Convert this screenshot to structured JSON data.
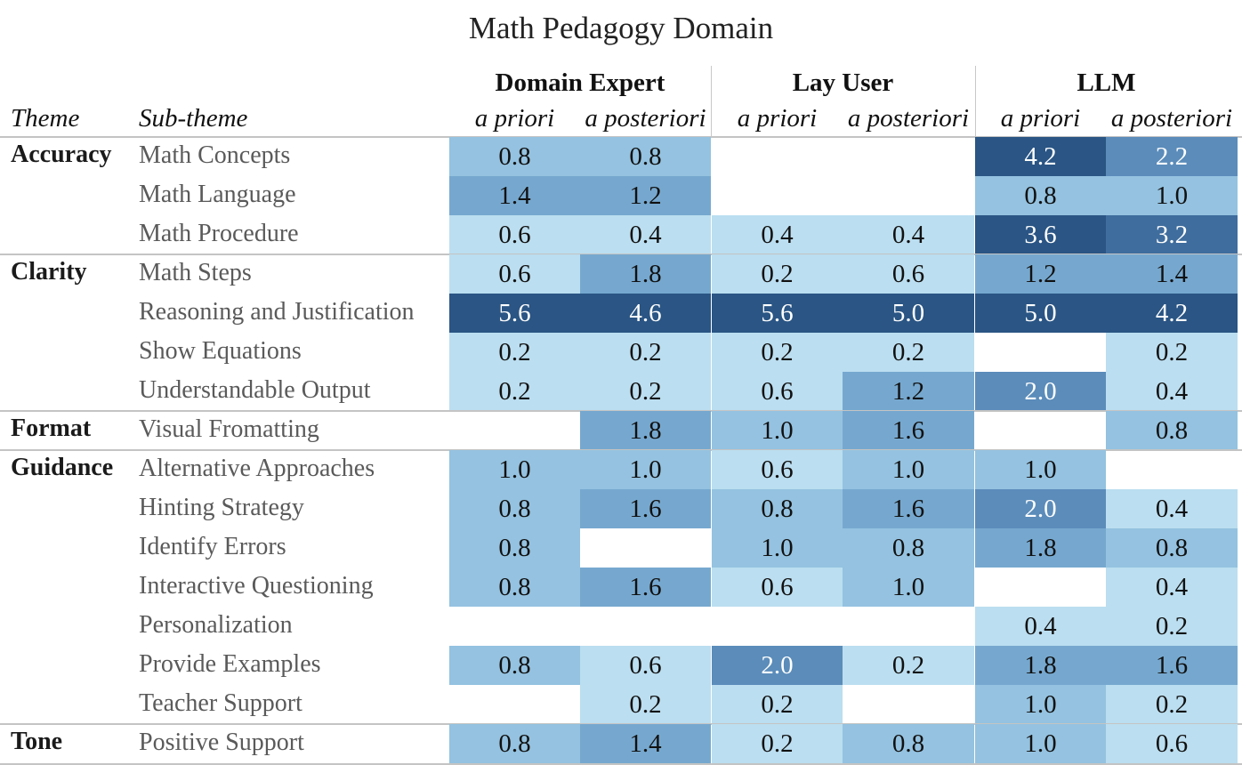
{
  "chart_data": {
    "type": "heatmap",
    "title": "Math Pedagogy Domain",
    "row_header_labels": {
      "theme": "Theme",
      "sub_theme": "Sub-theme"
    },
    "column_groups": [
      {
        "name": "Domain Expert",
        "columns": [
          "a priori",
          "a posteriori"
        ]
      },
      {
        "name": "Lay User",
        "columns": [
          "a priori",
          "a posteriori"
        ]
      },
      {
        "name": "LLM",
        "columns": [
          "a priori",
          "a posteriori"
        ]
      }
    ],
    "themes": [
      {
        "name": "Accuracy",
        "rows": [
          {
            "label": "Math Concepts",
            "values": [
              0.8,
              0.8,
              null,
              null,
              4.2,
              2.2
            ]
          },
          {
            "label": "Math Language",
            "values": [
              1.4,
              1.2,
              null,
              null,
              0.8,
              1.0
            ]
          },
          {
            "label": "Math Procedure",
            "values": [
              0.6,
              0.4,
              0.4,
              0.4,
              3.6,
              3.2
            ]
          }
        ]
      },
      {
        "name": "Clarity",
        "rows": [
          {
            "label": "Math Steps",
            "values": [
              0.6,
              1.8,
              0.2,
              0.6,
              1.2,
              1.4
            ]
          },
          {
            "label": "Reasoning and Justification",
            "values": [
              5.6,
              4.6,
              5.6,
              5.0,
              5.0,
              4.2
            ]
          },
          {
            "label": "Show Equations",
            "values": [
              0.2,
              0.2,
              0.2,
              0.2,
              null,
              0.2
            ]
          },
          {
            "label": "Understandable Output",
            "values": [
              0.2,
              0.2,
              0.6,
              1.2,
              2.0,
              0.4
            ]
          }
        ]
      },
      {
        "name": "Format",
        "rows": [
          {
            "label": "Visual Fromatting",
            "values": [
              null,
              1.8,
              1.0,
              1.6,
              null,
              0.8
            ]
          }
        ]
      },
      {
        "name": "Guidance",
        "rows": [
          {
            "label": "Alternative Approaches",
            "values": [
              1.0,
              1.0,
              0.6,
              1.0,
              1.0,
              null
            ]
          },
          {
            "label": "Hinting Strategy",
            "values": [
              0.8,
              1.6,
              0.8,
              1.6,
              2.0,
              0.4
            ]
          },
          {
            "label": "Identify Errors",
            "values": [
              0.8,
              null,
              1.0,
              0.8,
              1.8,
              0.8
            ]
          },
          {
            "label": "Interactive Questioning",
            "values": [
              0.8,
              1.6,
              0.6,
              1.0,
              null,
              0.4
            ]
          },
          {
            "label": "Personalization",
            "values": [
              null,
              null,
              null,
              null,
              0.4,
              0.2
            ]
          },
          {
            "label": "Provide Examples",
            "values": [
              0.8,
              0.6,
              2.0,
              0.2,
              1.8,
              1.6
            ]
          },
          {
            "label": "Teacher Support",
            "values": [
              null,
              0.2,
              0.2,
              null,
              1.0,
              0.2
            ]
          }
        ]
      },
      {
        "name": "Tone",
        "rows": [
          {
            "label": "Positive Support",
            "values": [
              0.8,
              1.4,
              0.2,
              0.8,
              1.0,
              0.6
            ]
          }
        ]
      }
    ],
    "colors": {
      "very_light": "#bbdef0",
      "light": "#94c2e0",
      "medium": "#76a8cf",
      "medium_dark": "#5b8cba",
      "dark": "#3f6d9d",
      "darkest": "#2a5584",
      "dark_text": "#ffffff",
      "light_text": "#111111"
    }
  }
}
